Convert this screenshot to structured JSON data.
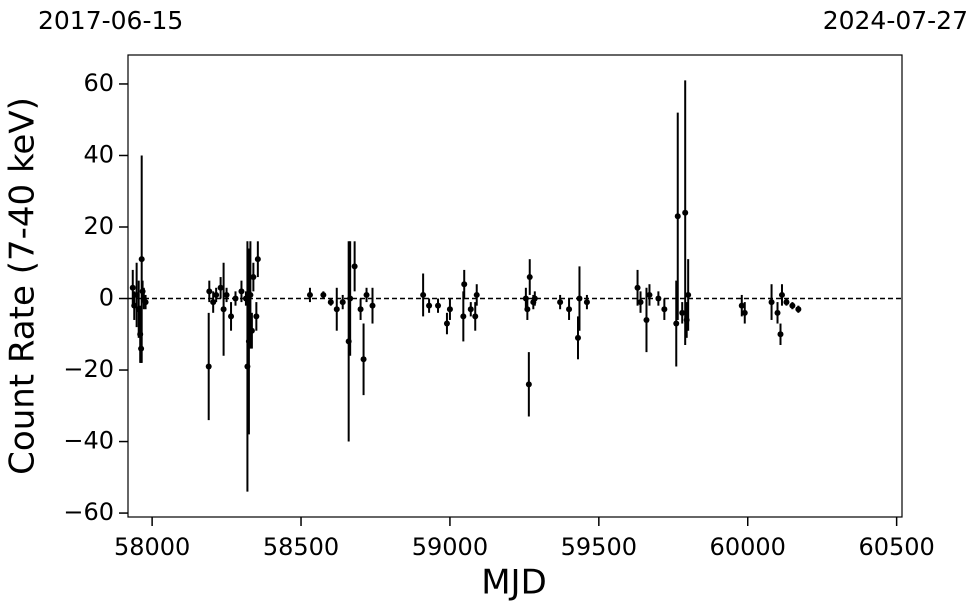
{
  "chart_data": {
    "type": "scatter",
    "date_labels": [
      "2017-06-15",
      "2024-07-27"
    ],
    "xlabel": "MJD",
    "ylabel": "Count Rate (7-40 keV)",
    "xlim": [
      57919,
      60518
    ],
    "ylim": [
      -61.1,
      68.1
    ],
    "xticks": [
      58000,
      58500,
      59000,
      59500,
      60000,
      60500
    ],
    "yticks": [
      {
        "value": -60,
        "label": "−60"
      },
      {
        "value": -40,
        "label": "−40"
      },
      {
        "value": -20,
        "label": "−20"
      },
      0,
      20,
      40,
      60
    ],
    "hline": 0,
    "series": [
      {
        "color": "#000000",
        "x": [
          57935,
          57940,
          57948,
          57955,
          57960,
          57963,
          57965,
          57968,
          57972,
          57978,
          58190,
          58192,
          58205,
          58215,
          58230,
          58240,
          58250,
          58265,
          58280,
          58300,
          58315,
          58320,
          58325,
          58330,
          58335,
          58340,
          58350,
          58355,
          58530,
          58575,
          58600,
          58620,
          58640,
          58660,
          58665,
          58680,
          58700,
          58710,
          58720,
          58740,
          58910,
          58930,
          58960,
          58990,
          59000,
          59045,
          59048,
          59070,
          59085,
          59090,
          59255,
          59260,
          59265,
          59268,
          59280,
          59285,
          59370,
          59400,
          59430,
          59435,
          59460,
          59630,
          59640,
          59660,
          59670,
          59700,
          59720,
          59760,
          59765,
          59780,
          59790,
          59795,
          59800,
          59980,
          59990,
          60080,
          60100,
          60110,
          60115,
          60130,
          60150,
          60170
        ],
        "values": [
          3,
          -2,
          1,
          -3,
          -10,
          -14,
          11,
          2,
          0,
          -1,
          -19,
          2,
          -1,
          1,
          3,
          -3,
          1,
          -5,
          0,
          2,
          0,
          -19,
          -12,
          1,
          -9,
          6,
          -5,
          11,
          1,
          1,
          -1,
          -3,
          -1,
          -12,
          0,
          9,
          -3,
          -17,
          1,
          -2,
          1,
          -2,
          -2,
          -7,
          -3,
          -5,
          4,
          -3,
          -5,
          1,
          0,
          -3,
          -24,
          6,
          -1,
          0,
          -1,
          -3,
          -11,
          0,
          -1,
          3,
          -1,
          -6,
          1,
          0,
          -3,
          -7,
          23,
          -4,
          24,
          -6,
          1,
          -2,
          -4,
          -1,
          -4,
          -10,
          1,
          -1,
          -2,
          -3
        ],
        "errors": [
          5,
          4,
          9,
          8,
          8,
          4,
          29,
          3,
          3,
          2,
          15,
          3,
          3,
          2,
          3,
          13,
          2,
          4,
          2,
          3,
          2,
          35,
          26,
          15,
          5,
          4,
          4,
          5,
          2,
          1,
          1,
          6,
          2,
          28,
          16,
          7,
          3,
          10,
          2,
          5,
          6,
          2,
          2,
          3,
          3,
          7,
          4,
          2,
          4,
          3,
          3,
          3,
          9,
          5,
          2,
          2,
          2,
          3,
          6,
          9,
          2,
          5,
          3,
          9,
          3,
          2,
          3,
          12,
          29,
          3,
          37,
          5,
          10,
          3,
          3,
          5,
          3,
          3,
          3,
          1,
          1,
          1
        ]
      }
    ]
  }
}
